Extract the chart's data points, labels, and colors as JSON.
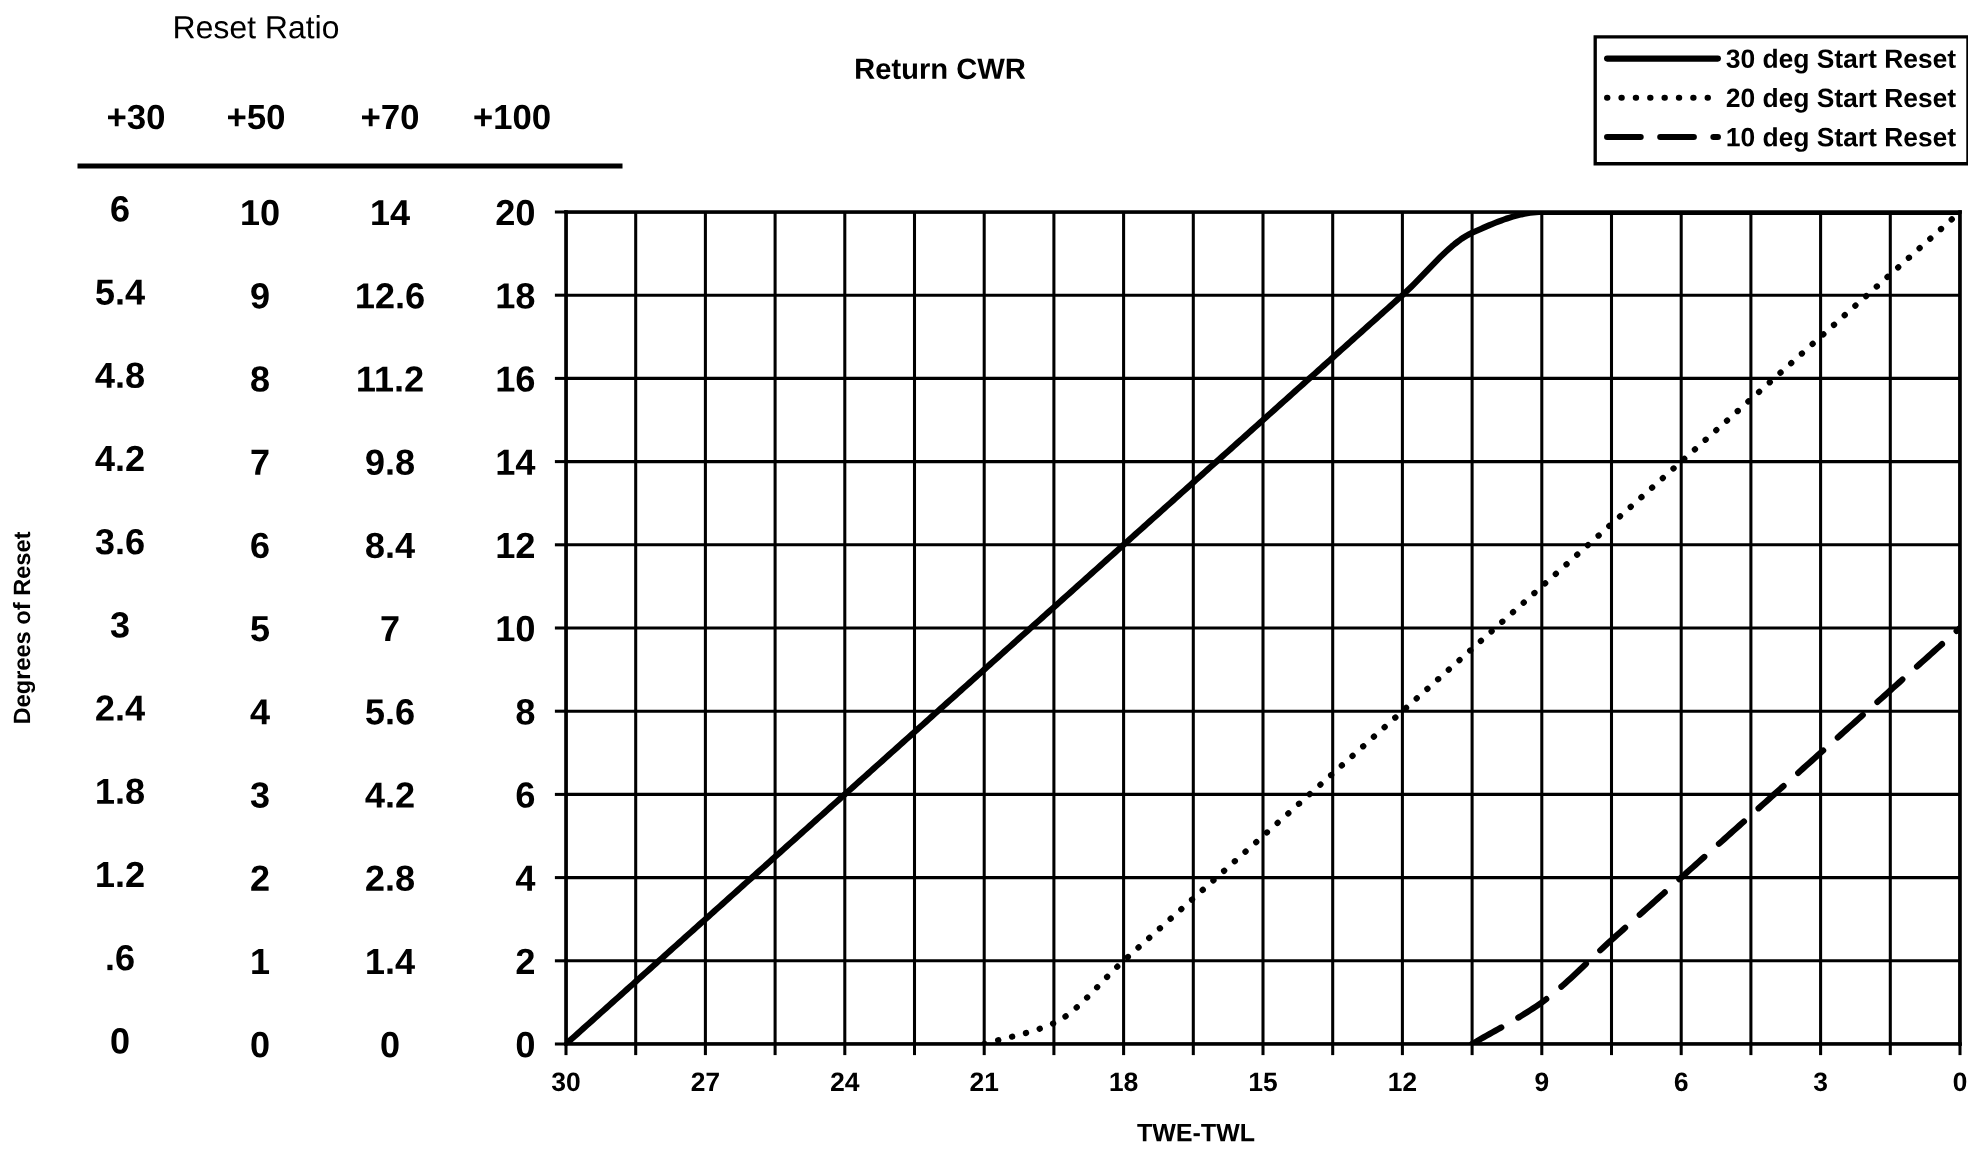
{
  "chart_data": {
    "type": "line",
    "title": "Return CWR",
    "xlabel": "TWE-TWL",
    "y2label": "+70",
    "y3label": "Degrees of Reset",
    "annotations": [
      "Reset Ratio",
      "+30",
      "+50",
      "+100",
      "6",
      "5.4",
      "4.8",
      "4.2",
      "3.6",
      "3",
      "2.4",
      "1.8",
      "1.2",
      ".6",
      "0"
    ],
    "x": [
      30,
      28.5,
      27,
      25.5,
      24,
      22.5,
      21,
      19.5,
      18,
      16.5,
      15,
      13.5,
      12,
      10.5,
      9,
      7.5,
      6,
      4.5,
      3,
      1.5,
      0
    ],
    "series": [
      {
        "name": "30 deg Start Reset",
        "color": "#000000",
        "line_style": "solid",
        "values": [
          0,
          1.5,
          3,
          4.5,
          6,
          7.5,
          9,
          10.5,
          12,
          13.5,
          15,
          16.5,
          18,
          19.5,
          20,
          20,
          20,
          20,
          20,
          20,
          20
        ]
      },
      {
        "name": "20 deg Start Reset",
        "color": "#000000",
        "line_style": "dotted",
        "values": [
          null,
          null,
          null,
          null,
          null,
          null,
          0,
          0.5,
          2,
          3.5,
          5,
          6.5,
          8,
          9.5,
          11,
          12.5,
          14,
          15.5,
          17,
          18.5,
          20
        ]
      },
      {
        "name": "10 deg Start Reset",
        "color": "#000000",
        "line_style": "dashed",
        "values": [
          null,
          null,
          null,
          null,
          null,
          null,
          null,
          null,
          null,
          null,
          null,
          null,
          null,
          0,
          1,
          2.5,
          4,
          5.5,
          7,
          8.5,
          10
        ]
      }
    ],
    "xlim": [
      30,
      0
    ],
    "xticks": [
      30,
      {
        "value": 28.5,
        "label": null
      },
      27,
      {
        "value": 25.5,
        "label": null
      },
      24,
      {
        "value": 22.5,
        "label": null
      },
      21,
      {
        "value": 19.5,
        "label": null
      },
      18,
      {
        "value": 16.5,
        "label": null
      },
      15,
      {
        "value": 13.5,
        "label": null
      },
      12,
      {
        "value": 10.5,
        "label": null
      },
      9,
      {
        "value": 7.5,
        "label": null
      },
      6,
      {
        "value": 4.5,
        "label": null
      },
      3,
      {
        "value": 1.5,
        "label": null
      },
      0
    ],
    "ylim": [
      0,
      20
    ],
    "yticks": [
      0,
      2,
      4,
      6,
      8,
      10,
      12,
      14,
      16,
      18,
      20
    ],
    "y2lim": [
      0,
      14
    ],
    "y2ticks": [
      0,
      1.4,
      2.8,
      4.2,
      5.6,
      7,
      8.4,
      9.8,
      11.2,
      12.6,
      14
    ],
    "y3lim": [
      0,
      10
    ],
    "y3ticks": [
      0,
      1,
      2,
      3,
      4,
      5,
      6,
      7,
      8,
      9,
      10
    ],
    "grid": true,
    "legend": "top right"
  }
}
